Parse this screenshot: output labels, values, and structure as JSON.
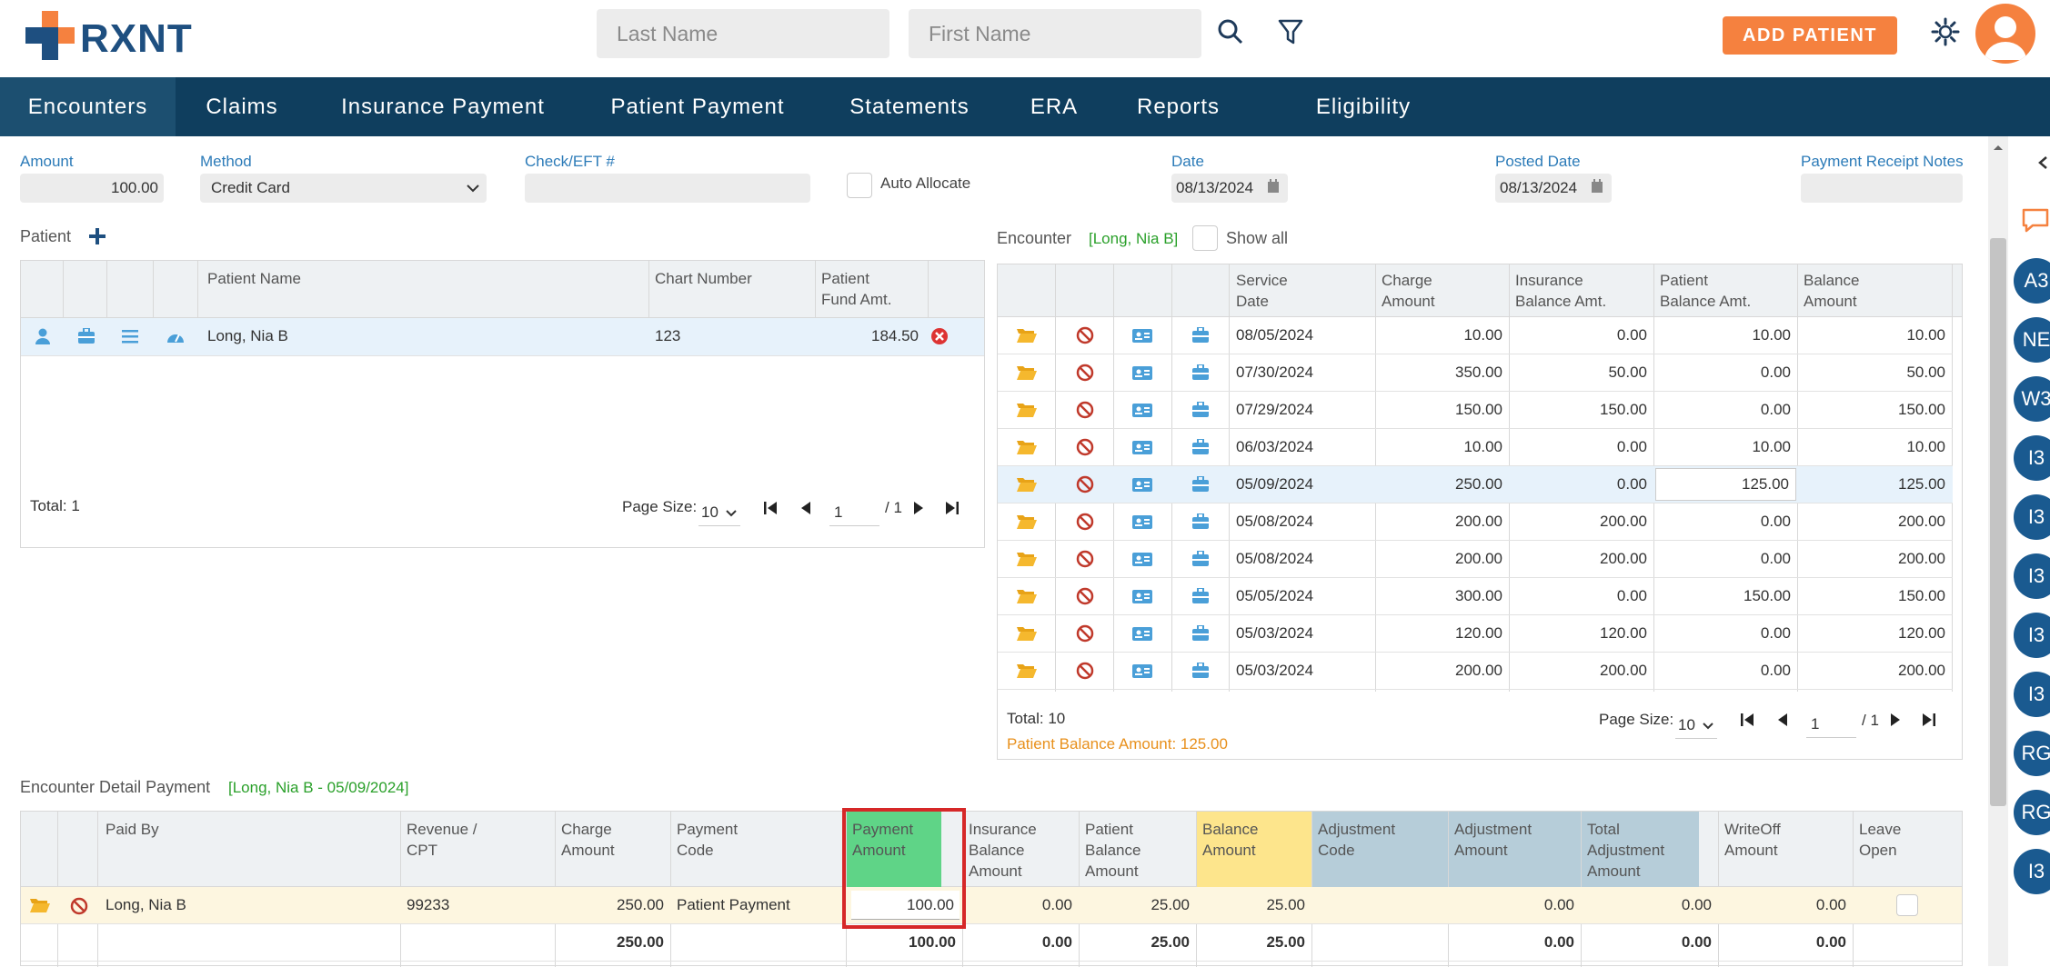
{
  "brand": {
    "name": "RXNT"
  },
  "header": {
    "last_name_placeholder": "Last Name",
    "first_name_placeholder": "First Name",
    "add_patient_label": "ADD PATIENT"
  },
  "nav": {
    "items": [
      {
        "label": "Encounters"
      },
      {
        "label": "Claims"
      },
      {
        "label": "Insurance Payment"
      },
      {
        "label": "Patient Payment"
      },
      {
        "label": "Statements"
      },
      {
        "label": "ERA"
      },
      {
        "label": "Reports"
      },
      {
        "label": "Eligibility"
      }
    ]
  },
  "form": {
    "amount_label": "Amount",
    "amount_value": "100.00",
    "method_label": "Method",
    "method_value": "Credit Card",
    "check_label": "Check/EFT #",
    "check_value": "",
    "auto_allocate_label": "Auto Allocate",
    "date_label": "Date",
    "date_value": "08/13/2024",
    "posted_date_label": "Posted Date",
    "posted_date_value": "08/13/2024",
    "notes_label": "Payment Receipt Notes"
  },
  "patient_grid": {
    "title": "Patient",
    "headers": {
      "name": "Patient Name",
      "chart": "Chart Number",
      "fund_1": "Patient",
      "fund_2": "Fund Amt."
    },
    "rows": [
      {
        "name": "Long, Nia B",
        "chart": "123",
        "fund": "184.50"
      }
    ],
    "total": "Total: 1",
    "page_size_label": "Page Size:",
    "page_size": "10",
    "page": "1",
    "page_of": "/ 1"
  },
  "encounter_grid": {
    "title": "Encounter",
    "patient_tag": "[Long, Nia B]",
    "show_all_label": "Show all",
    "headers": {
      "service_1": "Service",
      "service_2": "Date",
      "charge_1": "Charge",
      "charge_2": "Amount",
      "ins_1": "Insurance",
      "ins_2": "Balance Amt.",
      "pat_1": "Patient",
      "pat_2": "Balance Amt.",
      "bal_1": "Balance",
      "bal_2": "Amount"
    },
    "rows": [
      {
        "date": "08/05/2024",
        "charge": "10.00",
        "ins": "0.00",
        "pat": "10.00",
        "bal": "10.00"
      },
      {
        "date": "07/30/2024",
        "charge": "350.00",
        "ins": "50.00",
        "pat": "0.00",
        "bal": "50.00"
      },
      {
        "date": "07/29/2024",
        "charge": "150.00",
        "ins": "150.00",
        "pat": "0.00",
        "bal": "150.00"
      },
      {
        "date": "06/03/2024",
        "charge": "10.00",
        "ins": "0.00",
        "pat": "10.00",
        "bal": "10.00"
      },
      {
        "date": "05/09/2024",
        "charge": "250.00",
        "ins": "0.00",
        "pat": "125.00",
        "bal": "125.00"
      },
      {
        "date": "05/08/2024",
        "charge": "200.00",
        "ins": "200.00",
        "pat": "0.00",
        "bal": "200.00"
      },
      {
        "date": "05/08/2024",
        "charge": "200.00",
        "ins": "200.00",
        "pat": "0.00",
        "bal": "200.00"
      },
      {
        "date": "05/05/2024",
        "charge": "300.00",
        "ins": "0.00",
        "pat": "150.00",
        "bal": "150.00"
      },
      {
        "date": "05/03/2024",
        "charge": "120.00",
        "ins": "120.00",
        "pat": "0.00",
        "bal": "120.00"
      },
      {
        "date": "05/03/2024",
        "charge": "200.00",
        "ins": "200.00",
        "pat": "0.00",
        "bal": "200.00"
      }
    ],
    "total": "Total: 10",
    "page_size_label": "Page Size:",
    "page_size": "10",
    "page": "1",
    "page_of": "/ 1",
    "patient_balance": "Patient Balance Amount: 125.00"
  },
  "detail_grid": {
    "title": "Encounter Detail Payment",
    "tag": "[Long, Nia B - 05/09/2024]",
    "headers": {
      "paid_by": "Paid By",
      "rev_1": "Revenue /",
      "rev_2": "CPT",
      "charge_1": "Charge",
      "charge_2": "Amount",
      "code_1": "Payment",
      "code_2": "Code",
      "pay_1": "Payment",
      "pay_2": "Amount",
      "ins_1": "Insurance",
      "ins_2": "Balance",
      "ins_3": "Amount",
      "pat_1": "Patient",
      "pat_2": "Balance",
      "pat_3": "Amount",
      "bal_1": "Balance",
      "bal_2": "Amount",
      "adjc_1": "Adjustment",
      "adjc_2": "Code",
      "adja_1": "Adjustment",
      "adja_2": "Amount",
      "tadj_1": "Total",
      "tadj_2": "Adjustment",
      "tadj_3": "Amount",
      "wo_1": "WriteOff",
      "wo_2": "Amount",
      "lo_1": "Leave",
      "lo_2": "Open"
    },
    "row": {
      "paid_by": "Long, Nia B",
      "cpt": "99233",
      "charge": "250.00",
      "code": "Patient Payment",
      "payment": "100.00",
      "ins": "0.00",
      "pat": "25.00",
      "bal": "25.00",
      "adj_amt": "0.00",
      "total_adj": "0.00",
      "writeoff": "0.00"
    },
    "totals": {
      "charge": "250.00",
      "payment": "100.00",
      "ins": "0.00",
      "pat": "25.00",
      "bal": "25.00",
      "adj_amt": "0.00",
      "total_adj": "0.00",
      "writeoff": "0.00"
    }
  },
  "rail": {
    "bubbles": [
      "A3",
      "NE",
      "W3",
      "I3",
      "I3",
      "I3",
      "I3",
      "I3",
      "RG",
      "RG",
      "I3"
    ]
  }
}
